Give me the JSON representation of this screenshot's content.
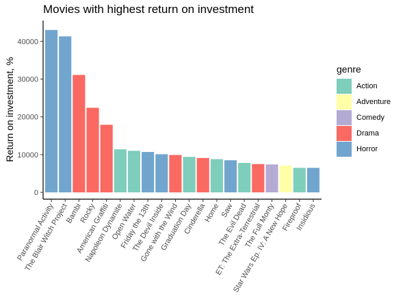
{
  "chart_data": {
    "type": "bar",
    "title": "Movies with highest return on investment",
    "xlabel": "",
    "ylabel": "Return on investment, %",
    "ylim": [
      -1800,
      45500
    ],
    "yticks": [
      0,
      10000,
      20000,
      30000,
      40000
    ],
    "grid": false,
    "legend_title": "genre",
    "legend_position": "right",
    "genres": [
      {
        "name": "Action",
        "color": "#7FCDBB"
      },
      {
        "name": "Adventure",
        "color": "#FFFFA8"
      },
      {
        "name": "Comedy",
        "color": "#B3ABD3"
      },
      {
        "name": "Drama",
        "color": "#FA6962"
      },
      {
        "name": "Horror",
        "color": "#71A5CD"
      }
    ],
    "categories": [
      "Paranormal Activity",
      "The Blair Witch Project",
      "Bambi",
      "Rocky",
      "American Graffiti",
      "Napoleon Dynamite",
      "Open Water",
      "Friday the 13th",
      "The Devil Inside",
      "Gone with the Wind",
      "Graduation Day",
      "Cinderella",
      "Home",
      "Saw",
      "The Evil Dead",
      "ET: The Extra-Terrestrial",
      "The Full Monty",
      "Star Wars Ep. IV: A New Hope",
      "Fireproof",
      "Insidious"
    ],
    "values": [
      43000,
      41300,
      31100,
      22400,
      17900,
      11400,
      11000,
      10700,
      10100,
      9900,
      9400,
      9100,
      8800,
      8500,
      7800,
      7500,
      7400,
      7100,
      6500,
      6500
    ],
    "bar_genres": [
      "Horror",
      "Horror",
      "Drama",
      "Drama",
      "Drama",
      "Action",
      "Action",
      "Horror",
      "Horror",
      "Drama",
      "Action",
      "Drama",
      "Action",
      "Horror",
      "Action",
      "Drama",
      "Comedy",
      "Adventure",
      "Action",
      "Horror"
    ]
  }
}
